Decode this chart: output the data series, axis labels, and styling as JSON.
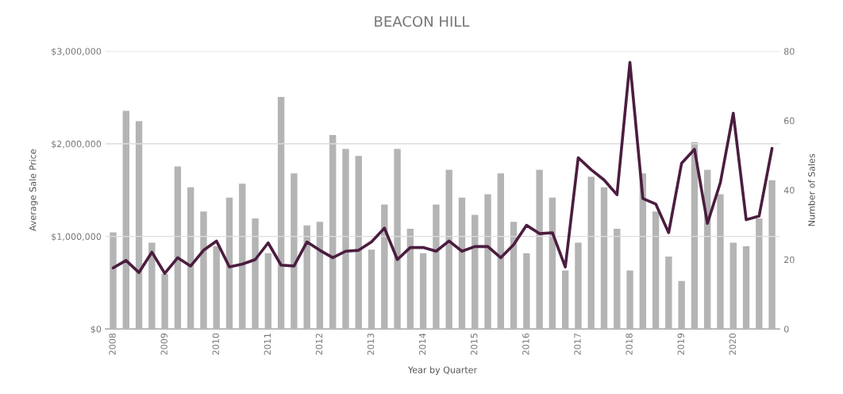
{
  "chart_data": {
    "type": "bar",
    "title": "BEACON HILL",
    "xlabel": "Year by Quarter",
    "ylabel": "Average Sale Price",
    "y2label": "Number of Sales",
    "categories": [
      "2008",
      null,
      null,
      null,
      "2009",
      null,
      null,
      null,
      "2010",
      null,
      null,
      null,
      "2011",
      null,
      null,
      null,
      "2012",
      null,
      null,
      null,
      "2013",
      null,
      null,
      null,
      "2014",
      null,
      null,
      null,
      "2015",
      null,
      null,
      null,
      "2016",
      null,
      null,
      null,
      "2017",
      null,
      null,
      null,
      "2018",
      null,
      null,
      null,
      "2019",
      null,
      null,
      null,
      "2020",
      null,
      null,
      null
    ],
    "series": [
      {
        "axis": "y2",
        "color": "#b4b4b4",
        "values": [
          28,
          63,
          60,
          25,
          16,
          47,
          41,
          34,
          24,
          38,
          42,
          32,
          22,
          67,
          45,
          30,
          31,
          56,
          52,
          50,
          23,
          36,
          52,
          29,
          22,
          36,
          46,
          38,
          33,
          39,
          45,
          31,
          22,
          46,
          38,
          17,
          25,
          44,
          41,
          29,
          17,
          45,
          34,
          21,
          14,
          54,
          46,
          39,
          25,
          24,
          32,
          43
        ]
      },
      {
        "type": "line",
        "axis": "y",
        "color": "#4b1d3f",
        "values": [
          660000,
          740000,
          610000,
          830000,
          600000,
          770000,
          680000,
          850000,
          950000,
          670000,
          700000,
          750000,
          930000,
          690000,
          680000,
          940000,
          850000,
          770000,
          840000,
          850000,
          940000,
          1090000,
          750000,
          880000,
          880000,
          840000,
          950000,
          840000,
          890000,
          890000,
          770000,
          910000,
          1120000,
          1030000,
          1040000,
          670000,
          1850000,
          1720000,
          1610000,
          1450000,
          2880000,
          1410000,
          1350000,
          1040000,
          1790000,
          1940000,
          1140000,
          1580000,
          2330000,
          1180000,
          1220000,
          1950000
        ]
      }
    ],
    "ylim": [
      0,
      3000000
    ],
    "yticks": [
      {
        "value": 0,
        "label": "$0"
      },
      {
        "value": 1000000,
        "label": "$1,000,000"
      },
      {
        "value": 2000000,
        "label": "$2,000,000"
      },
      {
        "value": 3000000,
        "label": "$3,000,000"
      }
    ],
    "y2lim": [
      0,
      80
    ],
    "y2ticks": [
      0,
      20,
      40,
      60,
      80
    ],
    "grid": "y",
    "legend": false
  }
}
